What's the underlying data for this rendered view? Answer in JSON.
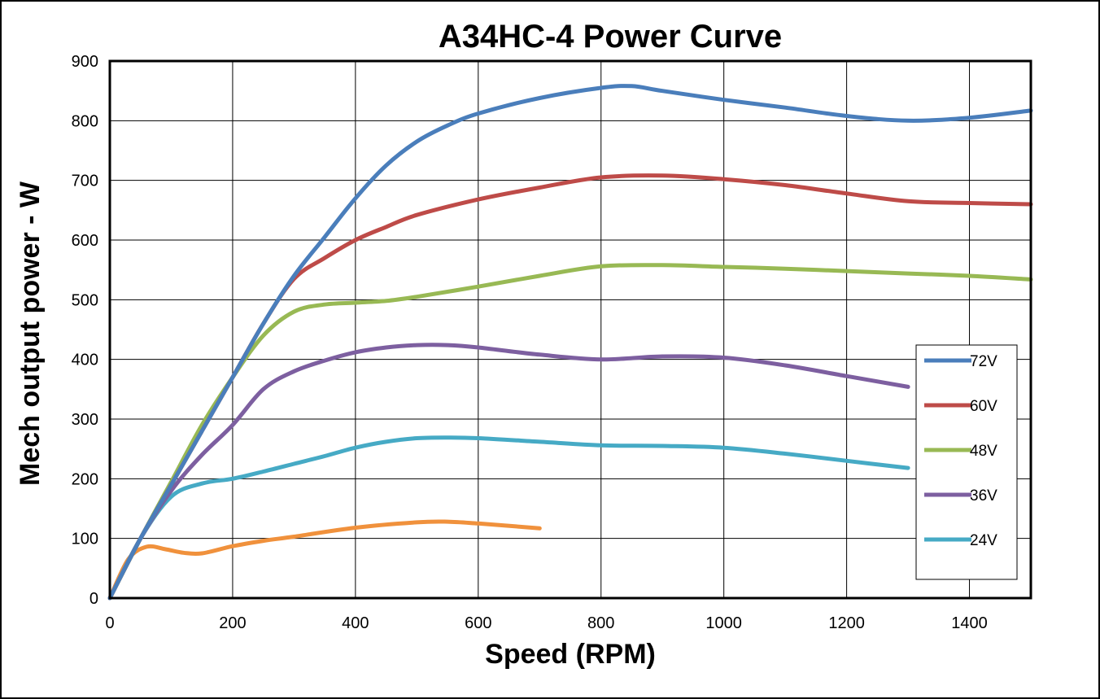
{
  "chart_data": {
    "type": "line",
    "title": "A34HC-4 Power Curve",
    "xlabel": "Speed (RPM)",
    "ylabel": "Mech output power - W",
    "xlim": [
      0,
      1500
    ],
    "ylim": [
      0,
      900
    ],
    "xticks": [
      0,
      200,
      400,
      600,
      800,
      1000,
      1200,
      1400
    ],
    "yticks": [
      0,
      100,
      200,
      300,
      400,
      500,
      600,
      700,
      800,
      900
    ],
    "grid": true,
    "legend_position": "right",
    "series": [
      {
        "name": "72V",
        "color": "#4a7ebb",
        "x": [
          0,
          50,
          100,
          150,
          200,
          250,
          300,
          350,
          400,
          450,
          500,
          550,
          600,
          700,
          800,
          850,
          900,
          1000,
          1100,
          1200,
          1300,
          1400,
          1500
        ],
        "y": [
          0,
          100,
          190,
          280,
          370,
          460,
          540,
          605,
          670,
          725,
          765,
          792,
          812,
          838,
          855,
          858,
          850,
          835,
          822,
          808,
          800,
          805,
          817
        ]
      },
      {
        "name": "60V",
        "color": "#be4b48",
        "x": [
          0,
          50,
          100,
          150,
          200,
          250,
          300,
          350,
          400,
          450,
          500,
          600,
          700,
          800,
          900,
          1000,
          1100,
          1200,
          1300,
          1400,
          1500
        ],
        "y": [
          0,
          100,
          190,
          280,
          370,
          460,
          535,
          570,
          600,
          622,
          642,
          668,
          688,
          705,
          708,
          702,
          692,
          678,
          665,
          662,
          660
        ]
      },
      {
        "name": "48V",
        "color": "#98b954",
        "x": [
          0,
          50,
          100,
          150,
          200,
          250,
          300,
          350,
          400,
          450,
          500,
          600,
          700,
          800,
          900,
          1000,
          1100,
          1200,
          1300,
          1400,
          1500
        ],
        "y": [
          0,
          100,
          195,
          290,
          370,
          440,
          480,
          492,
          495,
          498,
          505,
          522,
          540,
          556,
          558,
          555,
          552,
          548,
          544,
          540,
          534
        ]
      },
      {
        "name": "36V",
        "color": "#7d5fa0",
        "x": [
          0,
          50,
          100,
          150,
          200,
          250,
          300,
          350,
          400,
          450,
          500,
          550,
          600,
          700,
          800,
          900,
          1000,
          1100,
          1200,
          1300
        ],
        "y": [
          0,
          100,
          180,
          240,
          290,
          350,
          380,
          398,
          412,
          420,
          424,
          424,
          420,
          408,
          400,
          405,
          403,
          390,
          372,
          354
        ]
      },
      {
        "name": "24V",
        "color": "#46aac5",
        "x": [
          0,
          50,
          100,
          150,
          200,
          250,
          300,
          350,
          400,
          450,
          500,
          550,
          600,
          700,
          800,
          900,
          1000,
          1100,
          1200,
          1300
        ],
        "y": [
          0,
          100,
          170,
          192,
          200,
          212,
          225,
          238,
          252,
          262,
          268,
          269,
          268,
          262,
          256,
          255,
          252,
          242,
          230,
          218
        ]
      },
      {
        "name": "",
        "color": "#f0913c",
        "x": [
          0,
          30,
          60,
          90,
          120,
          150,
          200,
          250,
          300,
          400,
          500,
          550,
          600,
          700
        ],
        "y": [
          0,
          65,
          86,
          82,
          76,
          75,
          87,
          96,
          103,
          118,
          127,
          128,
          125,
          117
        ]
      }
    ]
  }
}
